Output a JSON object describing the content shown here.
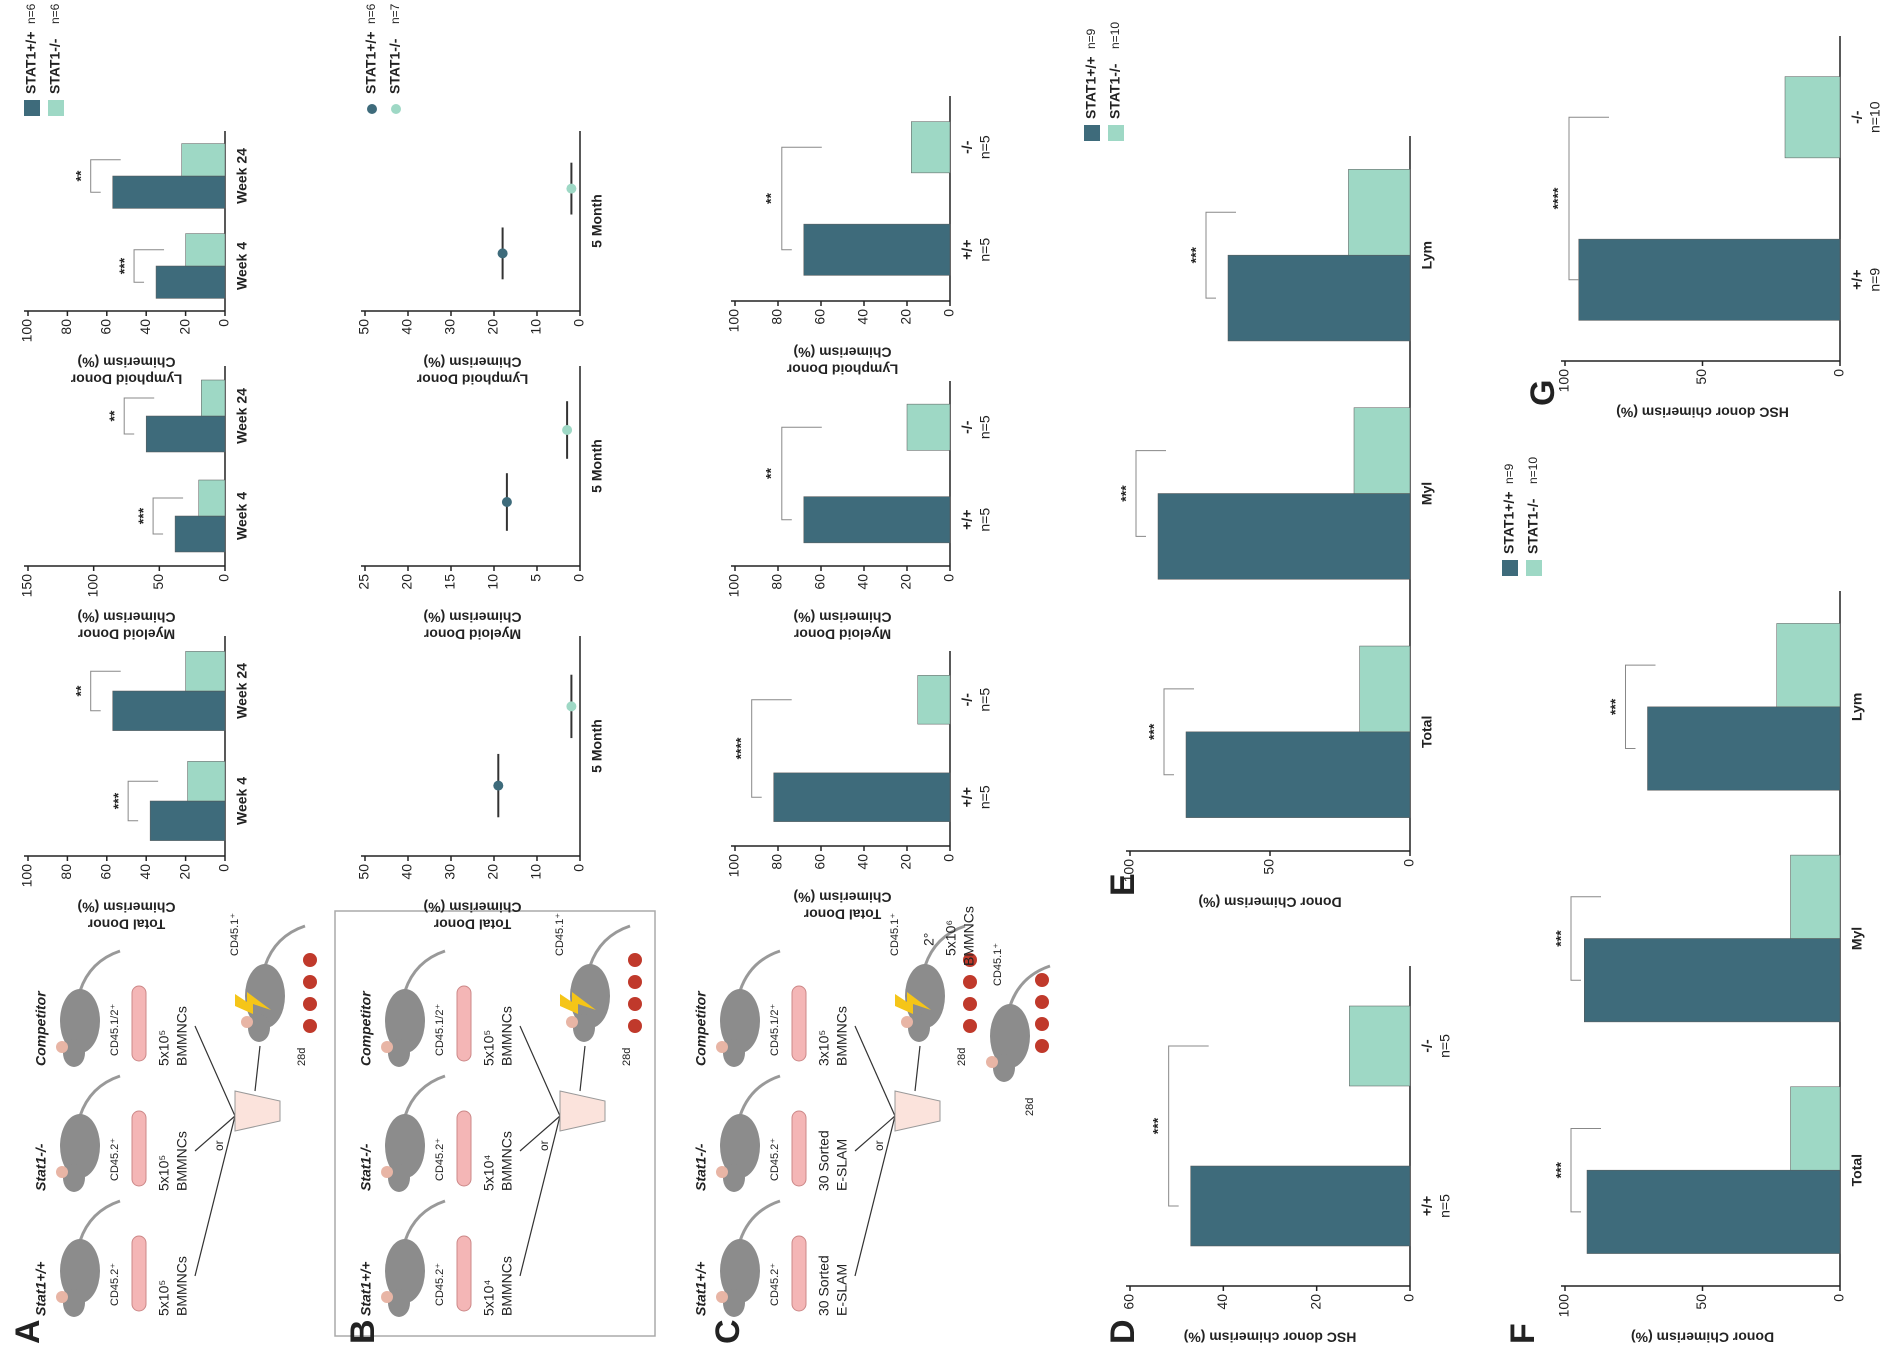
{
  "panels": [
    "A",
    "B",
    "C",
    "D",
    "E",
    "F",
    "G"
  ],
  "schematics": [
    {
      "donors": [
        {
          "genotype": "Stat1+/+",
          "marker": "CD45.2⁺",
          "dose": "5x10⁵",
          "cells": "BMMNCs"
        },
        {
          "genotype": "Stat1-/-",
          "marker": "CD45.2⁺",
          "dose": "5x10⁵",
          "cells": "BMMNCs"
        },
        {
          "genotype": "Competitor",
          "marker": "CD45.1/2⁺",
          "dose": "5x10⁵",
          "cells": "BMMNCs"
        }
      ],
      "or": "or",
      "recipient": "CD45.1⁺",
      "days": "28d"
    },
    {
      "donors": [
        {
          "genotype": "Stat1+/+",
          "marker": "CD45.2⁺",
          "dose": "5x10⁴",
          "cells": "BMMNCs"
        },
        {
          "genotype": "Stat1-/-",
          "marker": "CD45.2⁺",
          "dose": "5x10⁴",
          "cells": "BMMNCs"
        },
        {
          "genotype": "Competitor",
          "marker": "CD45.1/2⁺",
          "dose": "5x10⁵",
          "cells": "BMMNCs"
        }
      ],
      "or": "or",
      "recipient": "CD45.1⁺",
      "days": "28d"
    },
    {
      "donors": [
        {
          "genotype": "Stat1+/+",
          "marker": "CD45.2⁺",
          "dose": "30 Sorted",
          "cells": "E-SLAM"
        },
        {
          "genotype": "Stat1-/-",
          "marker": "CD45.2⁺",
          "dose": "30 Sorted",
          "cells": "E-SLAM"
        },
        {
          "genotype": "Competitor",
          "marker": "CD45.1/2⁺",
          "dose": "3x10⁵",
          "cells": "BMMNCs"
        }
      ],
      "or": "or",
      "recipient": "CD45.1⁺",
      "days": "28d",
      "secondary": {
        "label": "2°",
        "dose": "5x10⁶",
        "cells": "BMMNCs",
        "recipient": "CD45.1⁺",
        "days": "28d"
      }
    }
  ],
  "chart_data": [
    {
      "type": "bar",
      "y_label": [
        "Total Donor",
        "Chimerism (%)"
      ],
      "categories": [
        "Week 4",
        "Week 24"
      ],
      "series": [
        {
          "name": "STAT1+/+",
          "color": "#3e6b7b",
          "values": [
            38,
            57
          ]
        },
        {
          "name": "STAT1-/-",
          "color": "#9ed8c5",
          "values": [
            19,
            20
          ]
        }
      ],
      "ylim": [
        0,
        100
      ],
      "yticks": [
        0,
        20,
        40,
        60,
        80,
        100
      ],
      "significance": [
        "***",
        "**"
      ]
    },
    {
      "type": "bar",
      "y_label": [
        "Myeloid Donor",
        "Chimerism (%)"
      ],
      "categories": [
        "Week 4",
        "Week 24"
      ],
      "series": [
        {
          "name": "STAT1+/+",
          "color": "#3e6b7b",
          "values": [
            38,
            60
          ]
        },
        {
          "name": "STAT1-/-",
          "color": "#9ed8c5",
          "values": [
            20,
            18
          ]
        }
      ],
      "ylim": [
        0,
        150
      ],
      "yticks": [
        0,
        50,
        100,
        150
      ],
      "significance": [
        "***",
        "**"
      ]
    },
    {
      "type": "bar",
      "y_label": [
        "Lymphoid Donor",
        "Chimerism (%)"
      ],
      "categories": [
        "Week 4",
        "Week 24"
      ],
      "series": [
        {
          "name": "STAT1+/+",
          "color": "#3e6b7b",
          "values": [
            35,
            57
          ]
        },
        {
          "name": "STAT1-/-",
          "color": "#9ed8c5",
          "values": [
            20,
            22
          ]
        }
      ],
      "ylim": [
        0,
        100
      ],
      "yticks": [
        0,
        20,
        40,
        60,
        80,
        100
      ],
      "significance": [
        "***",
        "**"
      ],
      "legend": true,
      "legend_notes": [
        "n=6",
        "n=6"
      ]
    },
    {
      "type": "dot",
      "y_label": [
        "Total Donor",
        "Chimerism (%)"
      ],
      "categories": [
        "5 Month"
      ],
      "series": [
        {
          "name": "STAT1+/+",
          "color": "#3e6b7b",
          "values": [
            19
          ]
        },
        {
          "name": "STAT1-/-",
          "color": "#9ed8c5",
          "values": [
            2
          ]
        }
      ],
      "ylim": [
        0,
        50
      ],
      "yticks": [
        0,
        10,
        20,
        30,
        40,
        50
      ]
    },
    {
      "type": "dot",
      "y_label": [
        "Myeloid Donor",
        "Chimerism (%)"
      ],
      "categories": [
        "5 Month"
      ],
      "series": [
        {
          "name": "STAT1+/+",
          "color": "#3e6b7b",
          "values": [
            8.5
          ]
        },
        {
          "name": "STAT1-/-",
          "color": "#9ed8c5",
          "values": [
            1.5
          ]
        }
      ],
      "ylim": [
        0,
        25
      ],
      "yticks": [
        0,
        5,
        10,
        15,
        20,
        25
      ]
    },
    {
      "type": "dot",
      "y_label": [
        "Lymphoid Donor",
        "Chimerism (%)"
      ],
      "categories": [
        "5 Month"
      ],
      "series": [
        {
          "name": "STAT1+/+",
          "color": "#3e6b7b",
          "values": [
            18
          ]
        },
        {
          "name": "STAT1-/-",
          "color": "#9ed8c5",
          "values": [
            2
          ]
        }
      ],
      "ylim": [
        0,
        50
      ],
      "yticks": [
        0,
        10,
        20,
        30,
        40,
        50
      ],
      "legend": true,
      "legend_notes": [
        "n=6",
        "n=7"
      ]
    },
    {
      "type": "bar",
      "y_label": [
        "Total Donor",
        "Chimerism (%)"
      ],
      "categories": [
        "+/+",
        "-/-"
      ],
      "category_notes": [
        "n=5",
        "n=5"
      ],
      "values": [
        82,
        15
      ],
      "colors": [
        "#3e6b7b",
        "#9ed8c5"
      ],
      "ylim": [
        0,
        100
      ],
      "yticks": [
        0,
        20,
        40,
        60,
        80,
        100
      ],
      "significance": "****"
    },
    {
      "type": "bar",
      "y_label": [
        "Myeloid Donor",
        "Chimerism (%)"
      ],
      "categories": [
        "+/+",
        "-/-"
      ],
      "category_notes": [
        "n=5",
        "n=5"
      ],
      "values": [
        68,
        20
      ],
      "colors": [
        "#3e6b7b",
        "#9ed8c5"
      ],
      "ylim": [
        0,
        100
      ],
      "yticks": [
        0,
        20,
        40,
        60,
        80,
        100
      ],
      "significance": "**"
    },
    {
      "type": "bar",
      "y_label": [
        "Lymphoid Donor",
        "Chimerism (%)"
      ],
      "categories": [
        "+/+",
        "-/-"
      ],
      "category_notes": [
        "n=5",
        "n=5"
      ],
      "values": [
        68,
        18
      ],
      "colors": [
        "#3e6b7b",
        "#9ed8c5"
      ],
      "ylim": [
        0,
        100
      ],
      "yticks": [
        0,
        20,
        40,
        60,
        80,
        100
      ],
      "significance": "**"
    },
    {
      "type": "bar",
      "y_label": [
        "HSC donor chimerism (%)"
      ],
      "categories": [
        "+/+",
        "-/-"
      ],
      "category_notes": [
        "n=5",
        "n=5"
      ],
      "values": [
        47,
        13
      ],
      "colors": [
        "#3e6b7b",
        "#9ed8c5"
      ],
      "ylim": [
        0,
        60
      ],
      "yticks": [
        0,
        20,
        40,
        60
      ],
      "significance": "***"
    },
    {
      "type": "bar",
      "y_label": [
        "Donor Chimerism (%)"
      ],
      "categories": [
        "Total",
        "Myl",
        "Lym"
      ],
      "series": [
        {
          "name": "STAT1+/+",
          "color": "#3e6b7b",
          "values": [
            80,
            90,
            65
          ]
        },
        {
          "name": "STAT1-/-",
          "color": "#9ed8c5",
          "values": [
            18,
            20,
            22
          ]
        }
      ],
      "ylim": [
        0,
        100
      ],
      "yticks": [
        0,
        50,
        100
      ],
      "significance": [
        "***",
        "***",
        "***"
      ],
      "legend": true,
      "legend_notes": [
        "n=9",
        "n=10"
      ]
    },
    {
      "type": "bar",
      "y_label": [
        "Donor Chimerism (%)"
      ],
      "categories": [
        "Total",
        "Myl",
        "Lym"
      ],
      "series": [
        {
          "name": "STAT1+/+",
          "color": "#3e6b7b",
          "values": [
            92,
            93,
            70
          ]
        },
        {
          "name": "STAT1-/-",
          "color": "#9ed8c5",
          "values": [
            18,
            18,
            23
          ]
        }
      ],
      "ylim": [
        0,
        100
      ],
      "yticks": [
        0,
        50,
        100
      ],
      "significance": [
        "***",
        "***",
        "***"
      ],
      "legend": true,
      "legend_notes": [
        "n=9",
        "n=10"
      ]
    },
    {
      "type": "bar",
      "y_label": [
        "HSC donor chimerism (%)"
      ],
      "categories": [
        "+/+",
        "-/-"
      ],
      "category_notes": [
        "n=9",
        "n=10"
      ],
      "values": [
        95,
        20
      ],
      "colors": [
        "#3e6b7b",
        "#9ed8c5"
      ],
      "ylim": [
        0,
        100
      ],
      "yticks": [
        0,
        50,
        100
      ],
      "significance": "****"
    }
  ]
}
